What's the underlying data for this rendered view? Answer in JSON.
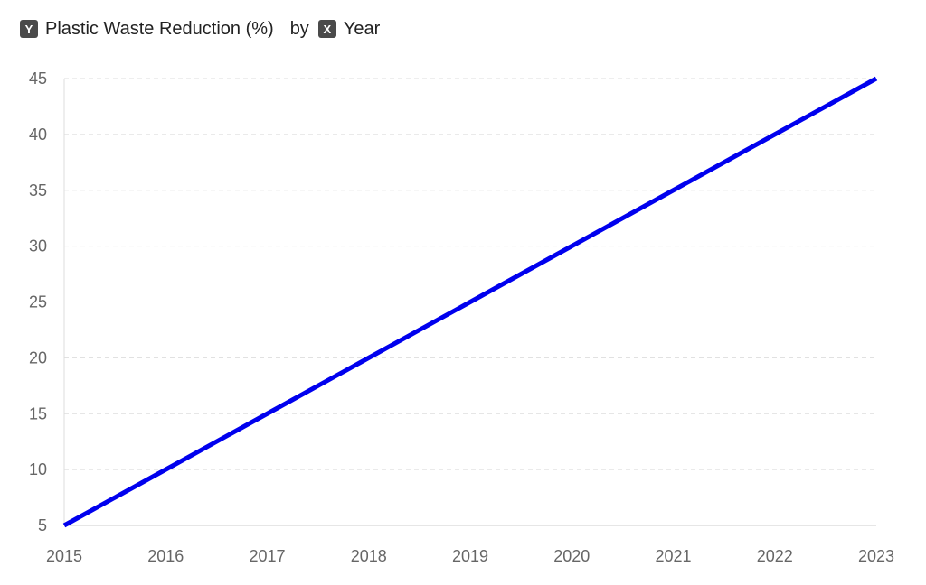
{
  "header": {
    "y_badge": "Y",
    "y_label": "Plastic Waste Reduction (%)",
    "joiner": "by",
    "x_badge": "X",
    "x_label": "Year"
  },
  "colors": {
    "line": "#0000ee",
    "grid": "#dddddd",
    "axis": "#dddddd",
    "tick_text": "#666666",
    "badge_bg": "#4a4a4a"
  },
  "chart_data": {
    "type": "line",
    "title": "",
    "xlabel": "Year",
    "ylabel": "Plastic Waste Reduction (%)",
    "x": [
      "2015",
      "2016",
      "2017",
      "2018",
      "2019",
      "2020",
      "2021",
      "2022",
      "2023"
    ],
    "series": [
      {
        "values": [
          5,
          10,
          15,
          20,
          25,
          30,
          35,
          40,
          45
        ]
      }
    ],
    "ylim": [
      5,
      45
    ],
    "yticks": [
      5,
      10,
      15,
      20,
      25,
      30,
      35,
      40,
      45
    ],
    "grid": true,
    "legend": "none"
  }
}
